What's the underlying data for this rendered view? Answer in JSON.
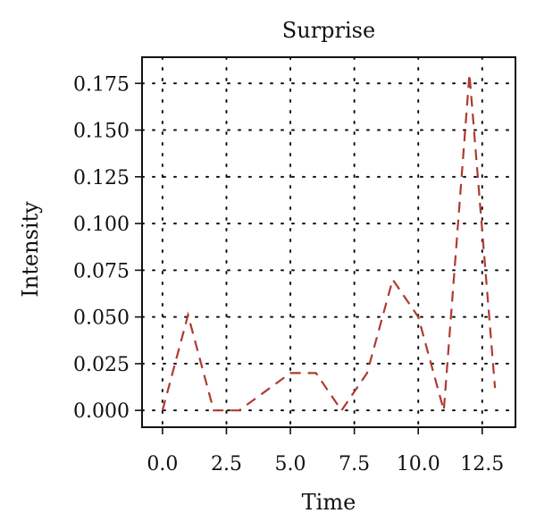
{
  "chart_data": {
    "type": "line",
    "title": "Surprise",
    "xlabel": "Time",
    "ylabel": "Intensity",
    "xlim": [
      -0.8,
      13.8
    ],
    "ylim": [
      -0.009,
      0.189
    ],
    "xticks": [
      0.0,
      2.5,
      5.0,
      7.5,
      10.0,
      12.5
    ],
    "xtick_labels": [
      "0.0",
      "2.5",
      "5.0",
      "7.5",
      "10.0",
      "12.5"
    ],
    "yticks": [
      0.0,
      0.025,
      0.05,
      0.075,
      0.1,
      0.125,
      0.15,
      0.175
    ],
    "ytick_labels": [
      "0.000",
      "0.025",
      "0.050",
      "0.075",
      "0.100",
      "0.125",
      "0.150",
      "0.175"
    ],
    "grid": true,
    "grid_style": "dotted",
    "series": [
      {
        "color": "#b03a2e",
        "line_style": "dashed",
        "x": [
          0,
          1,
          2,
          3,
          4,
          5,
          6,
          7,
          8,
          9,
          10,
          11,
          12,
          13
        ],
        "values": [
          0.0,
          0.051,
          0.0,
          0.0,
          0.01,
          0.02,
          0.02,
          0.0,
          0.02,
          0.07,
          0.05,
          0.0,
          0.18,
          0.012
        ]
      }
    ]
  }
}
